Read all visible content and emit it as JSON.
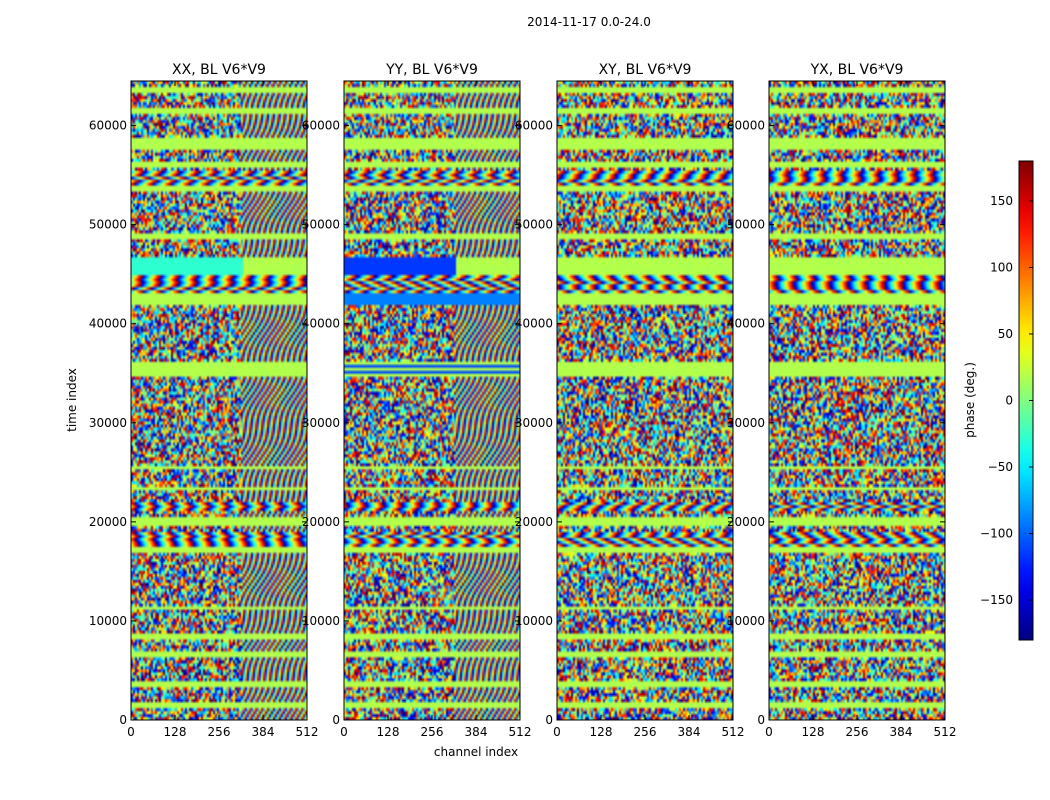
{
  "chart_data": {
    "type": "heatmap",
    "suptitle": "2014-11-17 0.0-24.0",
    "xlabel": "channel index",
    "ylabel": "time index",
    "xlim": [
      0,
      512
    ],
    "ylim": [
      0,
      64500
    ],
    "xticks": [
      0,
      128,
      256,
      384,
      512
    ],
    "yticks": [
      0,
      10000,
      20000,
      30000,
      40000,
      50000,
      60000
    ],
    "panels": [
      {
        "title": "XX, BL V6*V9",
        "highlight": "cyan"
      },
      {
        "title": "YY, BL V6*V9",
        "highlight": "blue"
      },
      {
        "title": "XY, BL V6*V9",
        "highlight": "none"
      },
      {
        "title": "YX, BL V6*V9",
        "highlight": "none"
      }
    ],
    "colorbar": {
      "label": "phase (deg.)",
      "range": [
        -180,
        180
      ],
      "ticks": [
        -150,
        -100,
        -50,
        0,
        50,
        100,
        150
      ],
      "colormap": "jet"
    },
    "flagged_row_bands": [
      [
        1200,
        1700
      ],
      [
        3400,
        3800
      ],
      [
        6200,
        7000
      ],
      [
        8200,
        8600
      ],
      [
        11200,
        11600
      ],
      [
        16800,
        17500
      ],
      [
        19500,
        20400
      ],
      [
        23100,
        23500
      ],
      [
        25300,
        25700
      ],
      [
        34700,
        36200
      ],
      [
        42000,
        43200
      ],
      [
        45000,
        46700
      ],
      [
        48400,
        49200
      ],
      [
        53300,
        53900
      ],
      [
        55800,
        56400
      ],
      [
        57600,
        58800
      ],
      [
        61200,
        61800
      ],
      [
        63400,
        63800
      ]
    ],
    "fringe_bands": [
      [
        17000,
        19000
      ],
      [
        43000,
        45000
      ],
      [
        54000,
        55500
      ],
      [
        21000,
        22000
      ]
    ]
  }
}
